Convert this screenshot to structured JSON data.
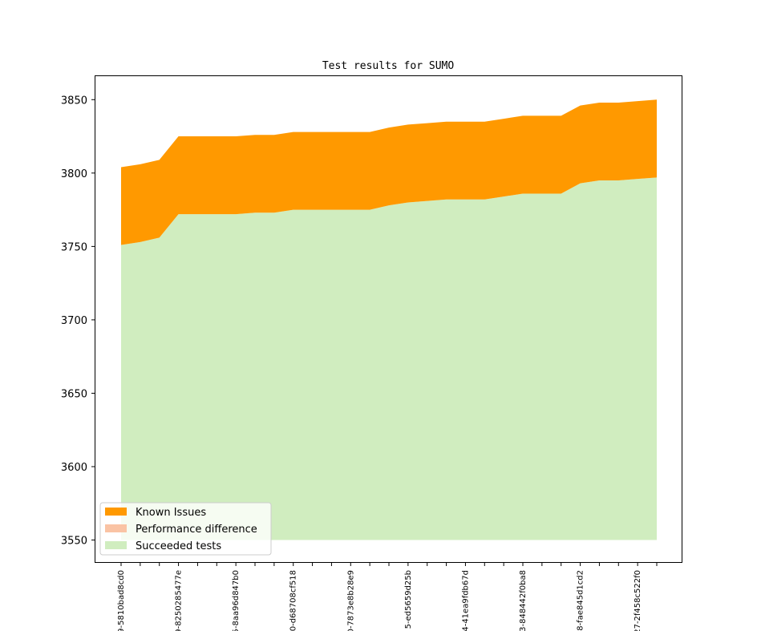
{
  "chart_data": {
    "type": "area",
    "title": "Test results for SUMO",
    "xlabel": "",
    "ylabel": "",
    "ylim": [
      3535,
      3866
    ],
    "yticks": [
      3550,
      3600,
      3650,
      3700,
      3750,
      3800,
      3850
    ],
    "baseline": 3550,
    "x_tick_labels": [
      "9-5810bad8cd0",
      "9-8250285477e",
      "5-8aa96d847b0",
      "0-d68708cf518",
      "0-7873e8b28e9",
      "5-ed5659d25b",
      "4-41ea9fdb67d",
      "3-848442f0ba8",
      "8-fae845d1cd2",
      "27-2f458c522f0"
    ],
    "series": [
      {
        "name": "Succeeded tests",
        "color": "#d0edbf",
        "values": [
          3751,
          3753,
          3756,
          3772,
          3772,
          3772,
          3772,
          3773,
          3773,
          3775,
          3775,
          3775,
          3775,
          3775,
          3778,
          3780,
          3781,
          3782,
          3782,
          3782,
          3784,
          3786,
          3786,
          3786,
          3793,
          3795,
          3795,
          3796,
          3797
        ]
      },
      {
        "name": "Performance difference",
        "color": "#fac3a4",
        "values": [
          3751,
          3753,
          3756,
          3772,
          3772,
          3772,
          3772,
          3773,
          3773,
          3775,
          3775,
          3775,
          3775,
          3775,
          3778,
          3780,
          3781,
          3782,
          3782,
          3782,
          3784,
          3786,
          3786,
          3786,
          3793,
          3795,
          3795,
          3796,
          3797
        ]
      },
      {
        "name": "Known Issues",
        "color": "#ff9900",
        "values": [
          3804,
          3806,
          3809,
          3825,
          3825,
          3825,
          3825,
          3826,
          3826,
          3828,
          3828,
          3828,
          3828,
          3828,
          3831,
          3833,
          3834,
          3835,
          3835,
          3835,
          3837,
          3839,
          3839,
          3839,
          3846,
          3848,
          3848,
          3849,
          3850
        ]
      }
    ],
    "legend": {
      "placement": "lower-left",
      "entries": [
        "Known Issues",
        "Performance difference",
        "Succeeded tests"
      ]
    },
    "grid": false
  }
}
